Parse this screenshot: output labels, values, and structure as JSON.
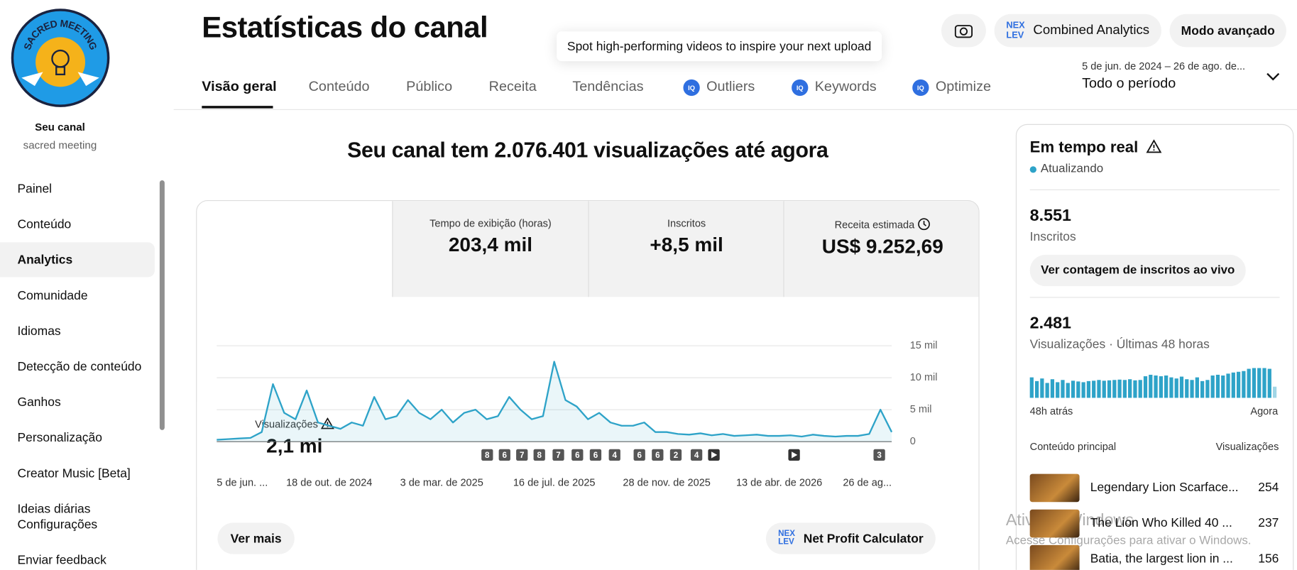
{
  "sidebar": {
    "logo_text": "SACRED MEETING",
    "channel_label": "Seu canal",
    "channel_name": "sacred meeting",
    "menu": [
      "Painel",
      "Conteúdo",
      "Analytics",
      "Comunidade",
      "Idiomas",
      "Detecção de conteúdo",
      "Ganhos",
      "Personalização",
      "Creator Music [Beta]",
      "Ideias diárias"
    ],
    "settings": "Configurações",
    "feedback": "Enviar feedback"
  },
  "header": {
    "title": "Estatísticas do canal",
    "tooltip": "Spot high-performing videos to inspire your next upload",
    "buttons": [
      "Combined Analytics",
      "Modo avançado"
    ],
    "tabs": [
      "Visão geral",
      "Conteúdo",
      "Público",
      "Receita",
      "Tendências",
      "Outliers",
      "Keywords",
      "Optimize"
    ],
    "date_range": "5 de jun. de 2024 – 26 de ago. de...",
    "period": "Todo o período"
  },
  "main": {
    "headline": "Seu canal tem 2.076.401 visualizações até agora",
    "metrics": [
      {
        "label": "Visualizações",
        "value": "2,1 mi"
      },
      {
        "label": "Tempo de exibição (horas)",
        "value": "203,4 mil"
      },
      {
        "label": "Inscritos",
        "value": "+8,5 mil"
      },
      {
        "label": "Receita estimada",
        "value": "US$ 9.252,69"
      }
    ],
    "chart_markers": [
      8,
      6,
      7,
      8,
      7,
      6,
      6,
      4,
      6,
      6,
      2,
      4,
      3
    ],
    "see_more": "Ver mais",
    "calculator": "Net Profit Calculator"
  },
  "chart_data": [
    {
      "type": "line",
      "color": "#2ea3c8",
      "categories": [
        "5 de jun. ...",
        null,
        null,
        null,
        null,
        null,
        null,
        null,
        null,
        null,
        "18 de out. de 2024",
        null,
        null,
        null,
        null,
        null,
        null,
        null,
        null,
        null,
        "3 de mar. de 2025",
        null,
        null,
        null,
        null,
        null,
        null,
        null,
        null,
        null,
        "16 de jul. de 2025",
        null,
        null,
        null,
        null,
        null,
        null,
        null,
        null,
        null,
        "28 de nov. de 2025",
        null,
        null,
        null,
        null,
        null,
        null,
        null,
        null,
        null,
        "13 de abr. de 2026",
        null,
        null,
        null,
        null,
        null,
        null,
        null,
        null,
        null,
        "26 de ag..."
      ],
      "values": [
        300,
        400,
        500,
        600,
        1500,
        9000,
        4500,
        3500,
        8000,
        3000,
        2500,
        2000,
        3000,
        2500,
        7000,
        3500,
        4000,
        6500,
        4500,
        3500,
        5000,
        3000,
        4500,
        5000,
        3500,
        4000,
        7000,
        5000,
        3500,
        4000,
        12500,
        6500,
        5500,
        3500,
        4500,
        3000,
        2500,
        2500,
        3000,
        1500,
        1500,
        1200,
        1100,
        1300,
        1000,
        1200,
        900,
        1000,
        1100,
        900,
        900,
        1000,
        800,
        1100,
        900,
        800,
        900,
        900,
        1200,
        5000,
        1500
      ],
      "ylim": [
        0,
        15000
      ],
      "yticks": [
        0,
        {
          "value": 5000,
          "label": "5 mil"
        },
        {
          "value": 10000,
          "label": "10 mil"
        },
        {
          "value": 15000,
          "label": "15 mil"
        }
      ],
      "grid": true
    },
    {
      "type": "bar",
      "color": "#2ea3c8",
      "categories": [
        "48h atrás",
        null,
        null,
        null,
        null,
        null,
        null,
        null,
        null,
        null,
        null,
        null,
        null,
        null,
        null,
        null,
        null,
        null,
        null,
        null,
        null,
        null,
        null,
        null,
        null,
        null,
        null,
        null,
        null,
        null,
        null,
        null,
        null,
        null,
        null,
        null,
        null,
        null,
        null,
        null,
        null,
        null,
        null,
        null,
        null,
        null,
        null,
        "Agora"
      ],
      "values": [
        55,
        45,
        52,
        40,
        50,
        42,
        48,
        40,
        46,
        44,
        42,
        45,
        46,
        48,
        46,
        47,
        48,
        49,
        48,
        50,
        47,
        48,
        58,
        62,
        60,
        58,
        60,
        55,
        52,
        57,
        50,
        48,
        55,
        45,
        48,
        60,
        62,
        60,
        65,
        68,
        70,
        72,
        78,
        80,
        80,
        80,
        78,
        30
      ],
      "ylim": [
        0,
        80
      ]
    }
  ],
  "realtime": {
    "title": "Em tempo real",
    "status": "Atualizando",
    "subscribers": "8.551",
    "subscribers_label": "Inscritos",
    "live_button": "Ver contagem de inscritos ao vivo",
    "views": "2.481",
    "views_label": "Visualizações · Últimas 48 horas",
    "top_label": "Conteúdo principal",
    "top_views_label": "Visualizações",
    "top_content": [
      {
        "title": "Legendary Lion Scarface...",
        "views": 254
      },
      {
        "title": "The Lion Who Killed 40 ...",
        "views": 237
      },
      {
        "title": "Batia, the largest lion in ...",
        "views": 156
      }
    ]
  },
  "watermark": {
    "title": "Ativar o Windows",
    "text": "Acesse Configurações para ativar o Windows."
  }
}
